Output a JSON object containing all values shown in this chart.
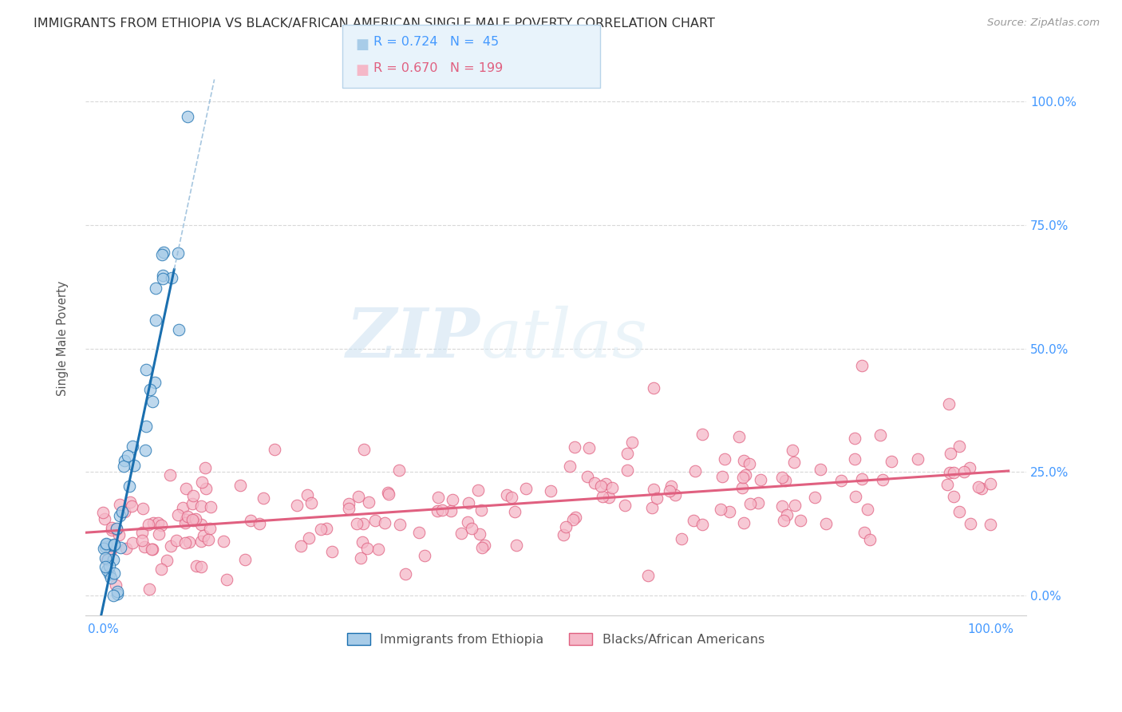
{
  "title": "IMMIGRANTS FROM ETHIOPIA VS BLACK/AFRICAN AMERICAN SINGLE MALE POVERTY CORRELATION CHART",
  "source": "Source: ZipAtlas.com",
  "ylabel": "Single Male Poverty",
  "legend_blue_r": "R = 0.724",
  "legend_blue_n": "N =  45",
  "legend_pink_r": "R = 0.670",
  "legend_pink_n": "N = 199",
  "legend_label_blue": "Immigrants from Ethiopia",
  "legend_label_pink": "Blacks/African Americans",
  "blue_color": "#a8cce8",
  "blue_line_color": "#1a6faf",
  "blue_dash_color": "#90b8d8",
  "pink_color": "#f5b8c8",
  "pink_line_color": "#e06080",
  "background_color": "#ffffff",
  "grid_color": "#d8d8d8",
  "watermark_zip": "ZIP",
  "watermark_atlas": "atlas",
  "tick_color": "#4499ff",
  "title_color": "#333333",
  "source_color": "#999999",
  "ylabel_color": "#555555",
  "seed": 99,
  "blue_R": 0.724,
  "blue_N": 45,
  "pink_R": 0.67,
  "pink_N": 199,
  "blue_slope": 8.5,
  "blue_intercept": -0.02,
  "pink_slope": 0.12,
  "pink_intercept": 0.13
}
